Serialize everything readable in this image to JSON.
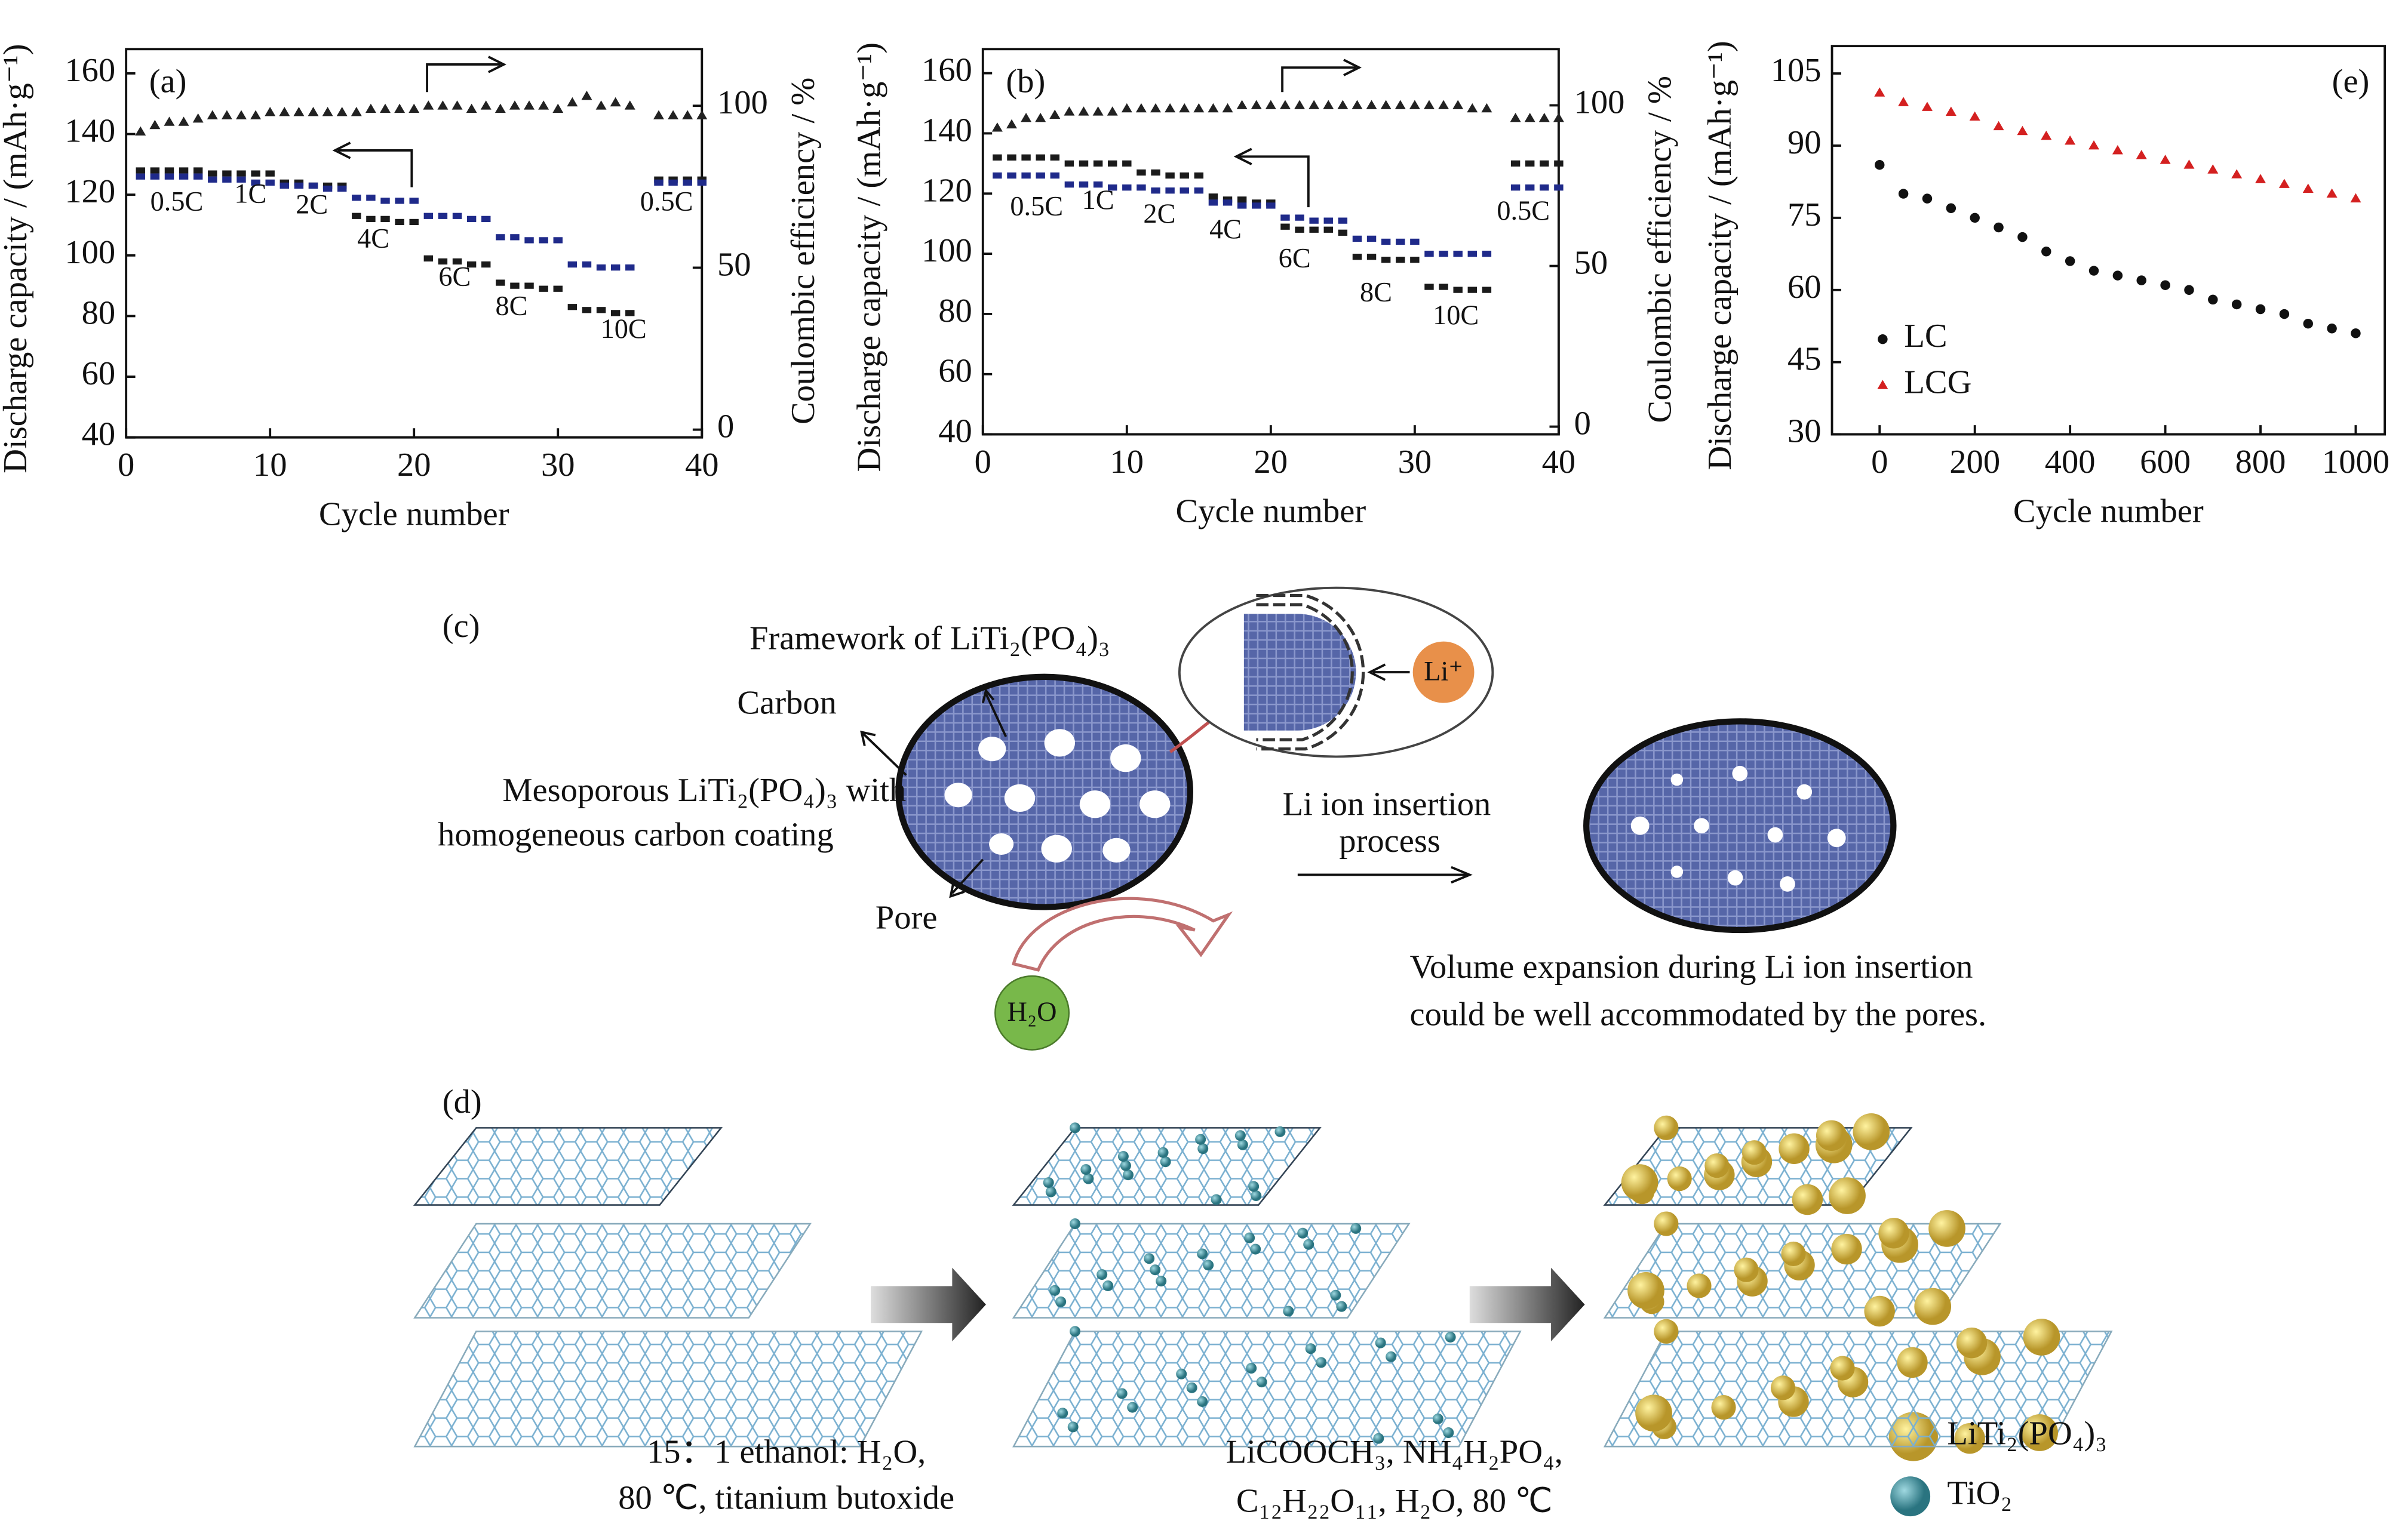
{
  "chart_data": [
    {
      "type": "scatter",
      "panel": "(a)",
      "xlabel": "Cycle number",
      "ylabel": "Discharge capacity / (mAh·g⁻¹)",
      "y2label": "Coulombic efficiency / %",
      "xlim": [
        0,
        40
      ],
      "xticks": [
        0,
        10,
        20,
        30,
        40
      ],
      "ylim": [
        40,
        168
      ],
      "yticks": [
        40,
        60,
        80,
        100,
        120,
        140,
        160
      ],
      "y2lim": [
        -2.4,
        117.5
      ],
      "y2ticks": [
        0,
        50,
        100
      ],
      "x": [
        1,
        2,
        3,
        4,
        5,
        6,
        7,
        8,
        9,
        10,
        11,
        12,
        13,
        14,
        15,
        16,
        17,
        18,
        19,
        20,
        21,
        22,
        23,
        24,
        25,
        26,
        27,
        28,
        29,
        30,
        31,
        32,
        33,
        34,
        35,
        37,
        38,
        39,
        40
      ],
      "series": [
        {
          "color": "#1a1a1a",
          "marker": "square",
          "values": [
            128,
            128,
            128,
            128,
            128,
            127,
            127,
            127,
            127,
            127,
            124,
            124,
            123,
            123,
            123,
            113,
            112,
            112,
            111,
            111,
            99,
            98,
            98,
            97,
            97,
            91,
            90,
            90,
            89,
            89,
            83,
            82,
            82,
            81,
            81,
            125,
            125,
            125,
            125
          ]
        },
        {
          "color": "#1f2a8a",
          "marker": "square",
          "values": [
            126,
            126,
            126,
            126,
            126,
            125,
            125,
            125,
            124,
            124,
            123,
            123,
            123,
            122,
            122,
            119,
            119,
            118,
            118,
            118,
            113,
            113,
            113,
            112,
            112,
            106,
            106,
            105,
            105,
            105,
            97,
            97,
            96,
            96,
            96,
            124,
            124,
            124,
            124
          ]
        },
        {
          "color": "#222222",
          "marker": "triangle",
          "axis": "y2",
          "values": [
            92,
            94,
            95,
            95,
            96,
            97,
            97,
            97,
            97,
            98,
            98,
            98,
            98,
            98,
            98,
            98,
            99,
            99,
            99,
            99,
            100,
            100,
            100,
            99,
            100,
            99,
            100,
            100,
            100,
            99,
            101,
            103,
            100,
            101,
            100,
            97,
            97,
            97,
            97
          ]
        }
      ],
      "rate_labels": [
        "0.5C",
        "1C",
        "2C",
        "4C",
        "6C",
        "8C",
        "10C",
        "0.5C"
      ]
    },
    {
      "type": "scatter",
      "panel": "(b)",
      "xlabel": "Cycle number",
      "ylabel": "Discharge capacity / (mAh·g⁻¹)",
      "y2label": "Coulombic efficiency / %",
      "xlim": [
        0,
        40
      ],
      "xticks": [
        0,
        10,
        20,
        30,
        40
      ],
      "ylim": [
        40,
        168
      ],
      "yticks": [
        40,
        60,
        80,
        100,
        120,
        140,
        160
      ],
      "y2lim": [
        -2.4,
        117.5
      ],
      "y2ticks": [
        0,
        50,
        100
      ],
      "x": [
        1,
        2,
        3,
        4,
        5,
        6,
        7,
        8,
        9,
        10,
        11,
        12,
        13,
        14,
        15,
        16,
        17,
        18,
        19,
        20,
        21,
        22,
        23,
        24,
        25,
        26,
        27,
        28,
        29,
        30,
        31,
        32,
        33,
        34,
        35,
        37,
        38,
        39,
        40
      ],
      "series": [
        {
          "color": "#1a1a1a",
          "marker": "square",
          "values": [
            132,
            132,
            132,
            132,
            132,
            130,
            130,
            130,
            130,
            130,
            127,
            127,
            126,
            126,
            126,
            119,
            118,
            118,
            117,
            117,
            109,
            108,
            108,
            108,
            107,
            99,
            99,
            98,
            98,
            98,
            89,
            89,
            88,
            88,
            88,
            130,
            130,
            130,
            130
          ]
        },
        {
          "color": "#1f2a8a",
          "marker": "square",
          "values": [
            126,
            126,
            126,
            126,
            126,
            123,
            123,
            123,
            122,
            122,
            122,
            121,
            121,
            121,
            121,
            117,
            117,
            116,
            116,
            116,
            112,
            112,
            111,
            111,
            111,
            105,
            105,
            104,
            104,
            104,
            100,
            100,
            100,
            100,
            100,
            122,
            122,
            122,
            122
          ]
        },
        {
          "color": "#222222",
          "marker": "triangle",
          "axis": "y2",
          "values": [
            93,
            94,
            96,
            96,
            97,
            98,
            98,
            98,
            98,
            99,
            99,
            99,
            99,
            99,
            99,
            99,
            99,
            100,
            100,
            100,
            100,
            100,
            100,
            100,
            100,
            100,
            100,
            100,
            100,
            100,
            100,
            100,
            100,
            99,
            99,
            96,
            96,
            96,
            96
          ]
        }
      ],
      "rate_labels": [
        "0.5C",
        "1C",
        "2C",
        "4C",
        "6C",
        "8C",
        "10C",
        "0.5C"
      ]
    },
    {
      "type": "scatter",
      "panel": "(e)",
      "xlabel": "Cycle number",
      "ylabel": "Discharge capacity / (mAh·g⁻¹)",
      "xlim": [
        -100,
        1061
      ],
      "xticks": [
        0,
        200,
        400,
        600,
        800,
        1000
      ],
      "ylim": [
        30,
        110.7
      ],
      "yticks": [
        30,
        45,
        60,
        75,
        90,
        105
      ],
      "x": [
        0,
        50,
        100,
        150,
        200,
        250,
        300,
        350,
        400,
        450,
        500,
        550,
        600,
        650,
        700,
        750,
        800,
        850,
        900,
        950,
        1000
      ],
      "series": [
        {
          "name": "LC",
          "color": "#111111",
          "marker": "circle",
          "values": [
            86,
            80,
            79,
            77,
            75,
            73,
            71,
            68,
            66,
            64,
            63,
            62,
            61,
            60,
            58,
            57,
            56,
            55,
            53,
            52,
            51
          ]
        },
        {
          "name": "LCG",
          "color": "#d42020",
          "marker": "triangle",
          "values": [
            101,
            99,
            98,
            97,
            96,
            94,
            93,
            92,
            91,
            90,
            89,
            88,
            87,
            86,
            85,
            84,
            83,
            82,
            81,
            80,
            79
          ]
        }
      ]
    }
  ],
  "diagrams": {
    "c": {
      "panel": "(c)",
      "framework": "Framework of LiTi₂(PO₄)₃",
      "carbon": "Carbon",
      "meso1": "Mesoporous LiTi₂(PO₄)₃ with",
      "meso2": "homogeneous carbon coating",
      "pore": "Pore",
      "h2o": "H₂O",
      "li": "Li⁺",
      "insert1": "Li ion insertion",
      "insert2": "process",
      "note1": "Volume expansion during Li ion insertion",
      "note2": "could be well accommodated by the pores."
    },
    "d": {
      "panel": "(d)",
      "step1a": "15：1 ethanol: H₂O,",
      "step1b": "80 ℃, titanium butoxide",
      "step2a": "LiCOOCH₃, NH₄H₂PO₄,",
      "step2b": "C₁₂H₂₂O₁₁, H₂O, 80 ℃",
      "legend1": "LiTi₂(PO₄)₃",
      "legend2": "TiO₂"
    }
  }
}
